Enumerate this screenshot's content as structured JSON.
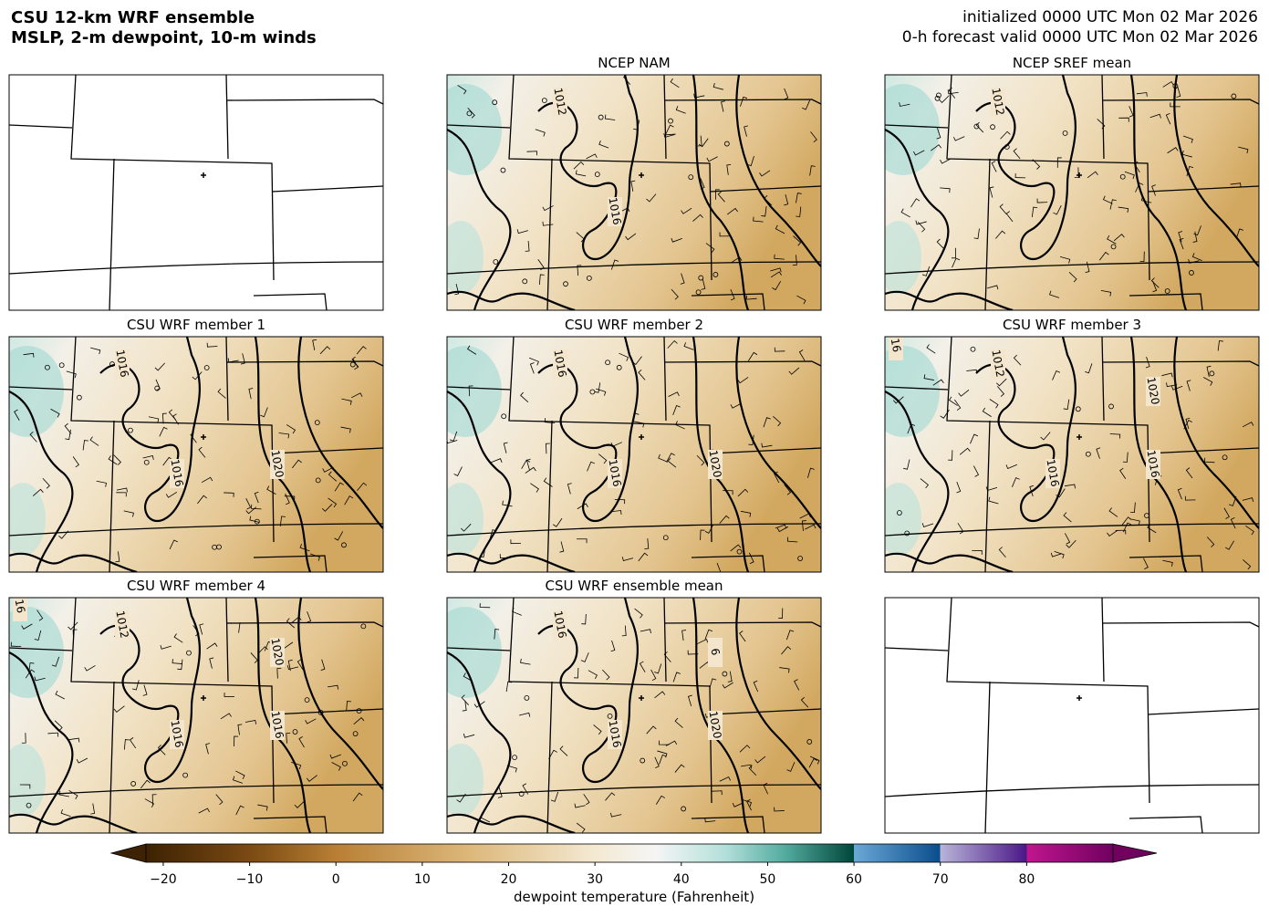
{
  "header": {
    "title_lines": [
      "CSU 12-km WRF ensemble",
      "MSLP, 2-m dewpoint, 10-m winds"
    ],
    "valid_lines": [
      "initialized 0000 UTC Mon 02 Mar 2026",
      "0-h forecast valid 0000 UTC Mon 02 Mar 2026"
    ]
  },
  "panels": [
    {
      "filled": false
    },
    {
      "title": "NCEP NAM",
      "filled": true,
      "contour_labels": [
        "1012",
        "1016"
      ]
    },
    {
      "title": "NCEP SREF mean",
      "filled": true,
      "contour_labels": [
        "1012"
      ]
    },
    {
      "title": "CSU WRF member 1",
      "filled": true,
      "contour_labels": [
        "1016",
        "1016",
        "1020"
      ]
    },
    {
      "title": "CSU WRF member 2",
      "filled": true,
      "contour_labels": [
        "1016",
        "1016",
        "1020"
      ]
    },
    {
      "title": "CSU WRF member 3",
      "filled": true,
      "contour_labels": [
        "1012",
        "1016",
        "1016",
        "1020",
        "16"
      ]
    },
    {
      "title": "CSU WRF member 4",
      "filled": true,
      "contour_labels": [
        "1012",
        "1016",
        "1016",
        "1020",
        "16"
      ]
    },
    {
      "title": "CSU WRF ensemble mean",
      "filled": true,
      "contour_labels": [
        "1016",
        "1016",
        "1020",
        "6"
      ]
    },
    {
      "filled": false
    }
  ],
  "colorbar": {
    "label": "dewpoint temperature (Fahrenheit)",
    "lim": [
      -22,
      90
    ],
    "ticks": [
      {
        "value": -20,
        "label": "−20"
      },
      {
        "value": -10,
        "label": "−10"
      },
      0,
      10,
      20,
      30,
      40,
      50,
      60,
      70,
      80
    ],
    "stops": [
      {
        "value": -22,
        "color": "#3d2203"
      },
      {
        "value": -10,
        "color": "#7a4a12"
      },
      {
        "value": 0,
        "color": "#b87f34"
      },
      {
        "value": 15,
        "color": "#dbb677"
      },
      {
        "value": 30,
        "color": "#f4e9d2"
      },
      {
        "value": 37,
        "color": "#f5f5f5"
      },
      {
        "value": 45,
        "color": "#b4e0da"
      },
      {
        "value": 52,
        "color": "#53ab9f"
      },
      {
        "value": 60,
        "color": "#00463a"
      },
      {
        "value": 60,
        "color": "#6aa8d6"
      },
      {
        "value": 70,
        "color": "#0a4d8c"
      },
      {
        "value": 70,
        "color": "#b8b5d8"
      },
      {
        "value": 80,
        "color": "#4b1788"
      },
      {
        "value": 80,
        "color": "#c0168f"
      },
      {
        "value": 90,
        "color": "#70015f"
      }
    ],
    "under_color": "#3d2203",
    "over_color": "#70015f"
  }
}
